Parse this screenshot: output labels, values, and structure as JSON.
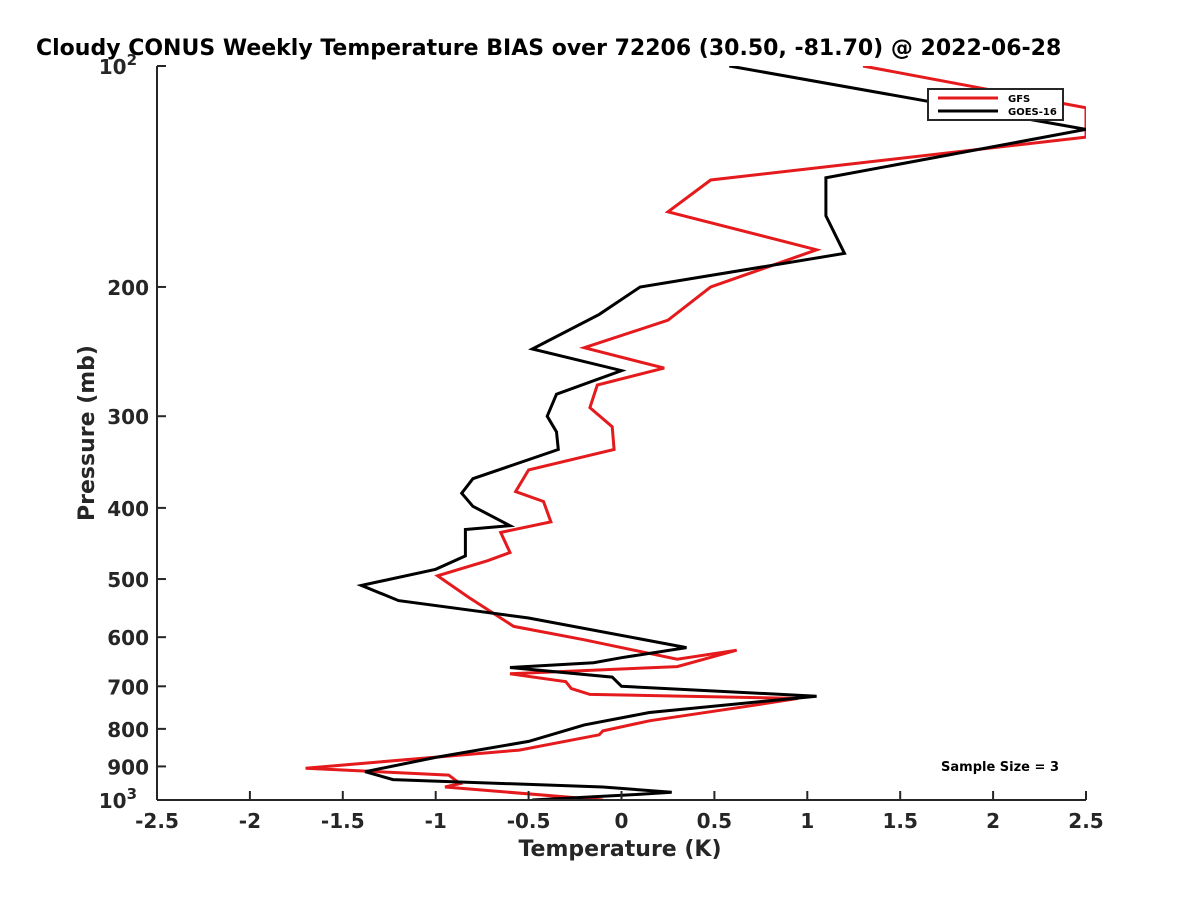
{
  "chart_data": {
    "type": "line",
    "title": "Cloudy CONUS Weekly Temperature BIAS over 72206 (30.50, -81.70) @ 2022-06-28",
    "xlabel": "Temperature (K)",
    "ylabel": "Pressure (mb)",
    "xlim": [
      -2.5,
      2.5
    ],
    "ylim": [
      1000,
      100
    ],
    "yscale": "log",
    "x_ticks": [
      -2.5,
      -2,
      -1.5,
      -1,
      -0.5,
      0,
      0.5,
      1,
      1.5,
      2,
      2.5
    ],
    "x_tick_labels": [
      "-2.5",
      "-2",
      "-1.5",
      "-1",
      "-0.5",
      "0",
      "0.5",
      "1",
      "1.5",
      "2",
      "2.5"
    ],
    "y_ticks": [
      100,
      200,
      300,
      400,
      500,
      600,
      700,
      800,
      900,
      1000
    ],
    "y_tick_labels": [
      "10²",
      "200",
      "300",
      "400",
      "500",
      "600",
      "700",
      "800",
      "900",
      "10³"
    ],
    "legend_position": "top-right",
    "annotation": "Sample Size = 3",
    "series": [
      {
        "name": "GFS",
        "color": "#e41a1c",
        "x": [
          1.3,
          2.5,
          2.5,
          0.48,
          0.25,
          1.05,
          0.48,
          0.25,
          -0.2,
          0.23,
          -0.13,
          -0.17,
          -0.05,
          -0.04,
          -0.5,
          -0.57,
          -0.42,
          -0.38,
          -0.65,
          -0.6,
          -0.72,
          -0.99,
          -0.82,
          -0.58,
          -0.2,
          0.3,
          0.62,
          0.3,
          -0.6,
          -0.3,
          -0.27,
          -0.17,
          0.95,
          0.68,
          0.15,
          -0.1,
          -0.12,
          -0.55,
          -1.7,
          -0.93,
          -0.87,
          -0.95,
          -0.1
        ],
        "y": [
          100,
          114,
          125,
          143,
          158,
          178,
          200,
          222,
          242,
          258,
          272,
          292,
          310,
          333,
          355,
          380,
          392,
          418,
          432,
          460,
          472,
          495,
          530,
          580,
          605,
          643,
          625,
          658,
          673,
          690,
          705,
          718,
          727,
          745,
          780,
          805,
          815,
          855,
          905,
          925,
          950,
          960,
          1000
        ],
        "values": [
          1.3,
          2.5,
          2.5,
          0.48,
          0.25,
          1.05,
          0.48,
          0.25,
          -0.2,
          0.23,
          -0.13,
          -0.17,
          -0.05,
          -0.04,
          -0.5,
          -0.57,
          -0.42,
          -0.38,
          -0.65,
          -0.6,
          -0.72,
          -0.99,
          -0.82,
          -0.58,
          -0.2,
          0.3,
          0.62,
          0.3,
          -0.6,
          -0.3,
          -0.27,
          -0.17,
          0.95,
          0.68,
          0.15,
          -0.1,
          -0.12,
          -0.55,
          -1.7,
          -0.93,
          -0.87,
          -0.95,
          -0.1
        ]
      },
      {
        "name": "GOES-16",
        "color": "#000000",
        "x": [
          0.58,
          2.5,
          1.1,
          1.1,
          1.2,
          0.1,
          -0.12,
          -0.48,
          0.0,
          -0.35,
          -0.4,
          -0.35,
          -0.34,
          -0.8,
          -0.86,
          -0.8,
          -0.6,
          -0.84,
          -0.84,
          -1.0,
          -1.4,
          -1.2,
          -0.5,
          0.35,
          0.0,
          -0.15,
          -0.6,
          -0.05,
          0.0,
          1.05,
          0.15,
          -0.2,
          -0.5,
          -1.0,
          -1.38,
          -1.23,
          -0.1,
          0.27,
          0.08,
          -0.25,
          -0.48
        ],
        "y": [
          100,
          122,
          142,
          160,
          180,
          200,
          218,
          243,
          260,
          280,
          300,
          315,
          333,
          365,
          382,
          398,
          423,
          428,
          465,
          485,
          510,
          535,
          565,
          620,
          640,
          650,
          660,
          680,
          700,
          722,
          760,
          790,
          832,
          875,
          915,
          938,
          960,
          976,
          983,
          993,
          1000
        ],
        "values": [
          0.58,
          2.5,
          1.1,
          1.1,
          1.2,
          0.1,
          -0.12,
          -0.48,
          0.0,
          -0.35,
          -0.4,
          -0.35,
          -0.34,
          -0.8,
          -0.86,
          -0.8,
          -0.6,
          -0.84,
          -0.84,
          -1.0,
          -1.4,
          -1.2,
          -0.5,
          0.35,
          0.0,
          -0.15,
          -0.6,
          -0.05,
          0.0,
          1.05,
          0.15,
          -0.2,
          -0.5,
          -1.0,
          -1.38,
          -1.23,
          -0.1,
          0.27,
          0.08,
          -0.25,
          -0.48
        ]
      }
    ]
  }
}
